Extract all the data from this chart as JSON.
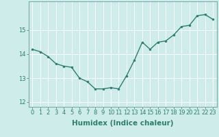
{
  "x": [
    0,
    1,
    2,
    3,
    4,
    5,
    6,
    7,
    8,
    9,
    10,
    11,
    12,
    13,
    14,
    15,
    16,
    17,
    18,
    19,
    20,
    21,
    22,
    23
  ],
  "y": [
    14.2,
    14.1,
    13.9,
    13.6,
    13.5,
    13.45,
    13.0,
    12.85,
    12.55,
    12.55,
    12.6,
    12.55,
    13.1,
    13.75,
    14.5,
    14.2,
    14.5,
    14.55,
    14.8,
    15.15,
    15.2,
    15.6,
    15.65,
    15.45
  ],
  "line_color": "#2e7d6e",
  "marker": "o",
  "marker_size": 2.0,
  "bg_color": "#ceecea",
  "grid_color": "#ffffff",
  "xlabel": "Humidex (Indice chaleur)",
  "ylim": [
    11.8,
    16.2
  ],
  "xlim": [
    -0.5,
    23.5
  ],
  "yticks": [
    12,
    13,
    14,
    15
  ],
  "xticks": [
    0,
    1,
    2,
    3,
    4,
    5,
    6,
    7,
    8,
    9,
    10,
    11,
    12,
    13,
    14,
    15,
    16,
    17,
    18,
    19,
    20,
    21,
    22,
    23
  ],
  "tick_fontsize": 6.0,
  "xlabel_fontsize": 7.5,
  "line_width": 1.0,
  "axis_color": "#4a6a6a",
  "spine_color": "#7aabaa"
}
